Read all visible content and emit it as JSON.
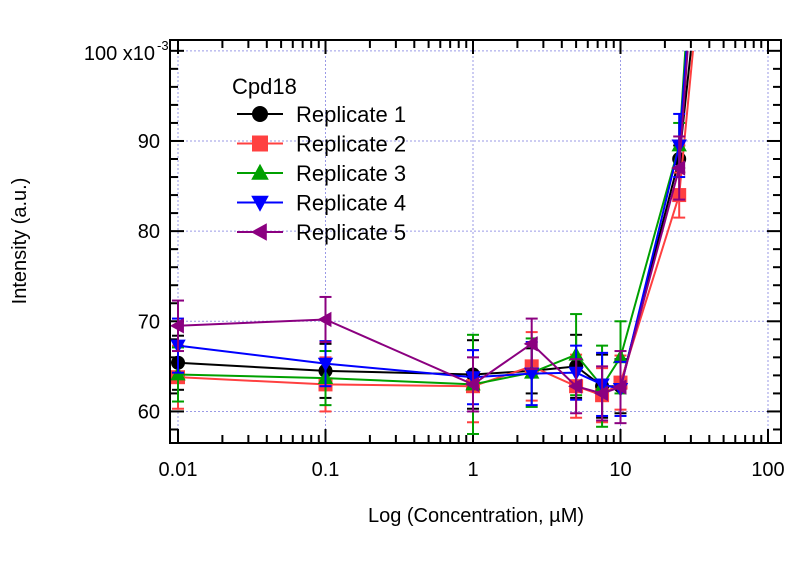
{
  "chart_data": {
    "type": "line",
    "xlabel": "Log (Concentration, µM)",
    "ylabel": "Intensity (a.u.)",
    "x_scale": "log",
    "xlim": [
      0.01,
      100
    ],
    "ylim": [
      0.0565,
      0.1012
    ],
    "x_ticks": [
      {
        "value": 0.01,
        "label": "0.01"
      },
      {
        "value": 0.1,
        "label": "0.1"
      },
      {
        "value": 1,
        "label": "1"
      },
      {
        "value": 10,
        "label": "10"
      },
      {
        "value": 100,
        "label": "100"
      }
    ],
    "y_ticks": [
      {
        "value": 0.06,
        "label": "60"
      },
      {
        "value": 0.07,
        "label": "70"
      },
      {
        "value": 0.08,
        "label": "80"
      },
      {
        "value": 0.09,
        "label": "90"
      },
      {
        "value": 0.1,
        "label": "100 x10"
      }
    ],
    "y_multiplier_exponent": "-3",
    "grid": true,
    "legend_title": "Cpd18",
    "legend_position": "top-left",
    "series": [
      {
        "name": "Replicate 1",
        "color": "#000000",
        "marker": "circle",
        "x": [
          0.01,
          0.1,
          1,
          2.5,
          5,
          7.5,
          10,
          25,
          30
        ],
        "y": [
          0.0654,
          0.0645,
          0.0641,
          0.0645,
          0.065,
          0.0628,
          0.0628,
          0.088,
          0.1
        ],
        "err": [
          0.003,
          0.003,
          0.0038,
          0.0025,
          0.0035,
          0.0035,
          0.003,
          0.0015,
          0
        ]
      },
      {
        "name": "Replicate 2",
        "color": "#ff4040",
        "marker": "square",
        "x": [
          0.01,
          0.1,
          1,
          2.5,
          5,
          7.5,
          10,
          25,
          31
        ],
        "y": [
          0.0638,
          0.063,
          0.0628,
          0.065,
          0.0628,
          0.0618,
          0.0632,
          0.084,
          0.1
        ],
        "err": [
          0.0035,
          0.003,
          0.004,
          0.0038,
          0.0035,
          0.003,
          0.003,
          0.0025,
          0
        ]
      },
      {
        "name": "Replicate 3",
        "color": "#00a000",
        "marker": "triangle-up",
        "x": [
          0.01,
          0.1,
          1,
          2.5,
          5,
          7.5,
          10,
          25,
          27.5
        ],
        "y": [
          0.0641,
          0.0637,
          0.063,
          0.0643,
          0.0663,
          0.0628,
          0.066,
          0.0895,
          0.1
        ],
        "err": [
          0.003,
          0.003,
          0.0055,
          0.0038,
          0.0045,
          0.0045,
          0.004,
          0.0025,
          0
        ]
      },
      {
        "name": "Replicate 4",
        "color": "#0000ff",
        "marker": "triangle-down",
        "x": [
          0.01,
          0.1,
          1,
          2.5,
          5,
          7.5,
          10,
          25,
          28
        ],
        "y": [
          0.0673,
          0.0653,
          0.0638,
          0.0642,
          0.0643,
          0.063,
          0.0625,
          0.0895,
          0.1
        ],
        "err": [
          0.003,
          0.0025,
          0.003,
          0.0035,
          0.003,
          0.0035,
          0.003,
          0.0035,
          0
        ]
      },
      {
        "name": "Replicate 5",
        "color": "#8b0080",
        "marker": "triangle-left",
        "x": [
          0.01,
          0.1,
          1,
          2.5,
          5,
          7.5,
          10,
          25,
          28.5
        ],
        "y": [
          0.0695,
          0.0702,
          0.063,
          0.0675,
          0.0628,
          0.062,
          0.0627,
          0.087,
          0.1
        ],
        "err": [
          0.0028,
          0.0025,
          0.003,
          0.0028,
          0.003,
          0.003,
          0.004,
          0.0035,
          0
        ]
      }
    ]
  }
}
